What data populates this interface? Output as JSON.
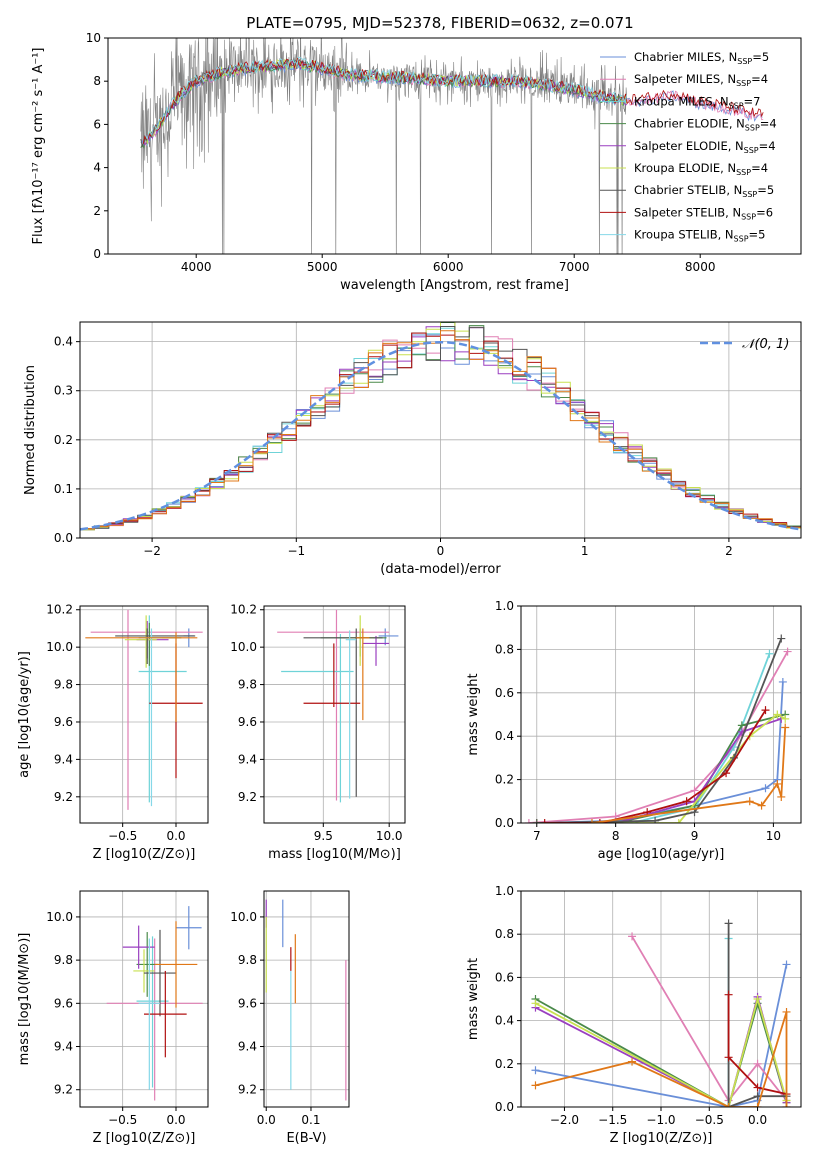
{
  "figure_title": "PLATE=0795, MJD=52378, FIBERID=0632, z=0.071",
  "colors": {
    "Chabrier MILES": "#6a8fd8",
    "Salpeter MILES": "#e07fb4",
    "Kroupa MILES": "#6fd3d8",
    "Chabrier ELODIE": "#4a8a4a",
    "Salpeter ELODIE": "#9a3fc0",
    "Kroupa ELODIE": "#c8e050",
    "Chabrier STELIB": "#555555",
    "Salpeter STELIB": "#b01010",
    "Kroupa STELIB": "#86d8e8",
    "orange": "#e07818",
    "data": "#808080",
    "gaussian": "#6090e0"
  },
  "chart_data": [
    {
      "id": "spectrum",
      "type": "line",
      "title": "",
      "xlabel": "wavelength [Angstrom, rest frame]",
      "ylabel": "Flux [fλ10⁻¹⁷ erg cm⁻² s⁻¹ A⁻¹]",
      "xlim": [
        3300,
        8800
      ],
      "ylim": [
        0,
        10
      ],
      "xticks": [
        4000,
        5000,
        6000,
        7000,
        8000
      ],
      "yticks": [
        0,
        2,
        4,
        6,
        8,
        10
      ],
      "grid": false,
      "legend_position": "top-right",
      "legend": [
        {
          "name": "Chabrier MILES",
          "nssp": "5"
        },
        {
          "name": "Salpeter MILES",
          "nssp": "4"
        },
        {
          "name": "Kroupa MILES",
          "nssp": "7"
        },
        {
          "name": "Chabrier ELODIE",
          "nssp": "4"
        },
        {
          "name": "Salpeter ELODIE",
          "nssp": "4"
        },
        {
          "name": "Kroupa ELODIE",
          "nssp": "4"
        },
        {
          "name": "Chabrier STELIB",
          "nssp": "5"
        },
        {
          "name": "Salpeter STELIB",
          "nssp": "6"
        },
        {
          "name": "Kroupa STELIB",
          "nssp": "5"
        }
      ],
      "continuum": {
        "x": [
          3550,
          3650,
          3800,
          3900,
          4000,
          4200,
          4400,
          4600,
          4800,
          5000,
          5200,
          5500,
          5800,
          6000,
          6300,
          6500,
          6700,
          7000,
          7200,
          7400,
          7600,
          7800,
          8000,
          8200,
          8400,
          8600
        ],
        "y": [
          5.0,
          5.5,
          6.8,
          7.5,
          8.0,
          8.4,
          8.6,
          8.7,
          8.8,
          8.6,
          8.3,
          8.2,
          8.1,
          8.0,
          8.0,
          8.0,
          7.9,
          7.6,
          7.3,
          7.1,
          7.2,
          7.4,
          7.0,
          6.8,
          6.5,
          6.3
        ]
      }
    },
    {
      "id": "residual_hist",
      "type": "bar",
      "title": "",
      "xlabel": "(data-model)/error",
      "ylabel": "Normed distribution",
      "xlim": [
        -2.5,
        2.5
      ],
      "ylim": [
        0,
        0.44
      ],
      "xticks": [
        -2,
        -1,
        0,
        1,
        2
      ],
      "yticks": [
        0.0,
        0.1,
        0.2,
        0.3,
        0.4
      ],
      "grid": true,
      "legend_position": "top-right",
      "legend_label": "𝒩(0, 1)",
      "bin_width": 0.1,
      "bin_start": -2.5,
      "reference": {
        "name": "𝒩(0, 1)",
        "mean": 0,
        "sigma": 1
      }
    },
    {
      "id": "age_vs_Z",
      "type": "scatter",
      "xlabel": "Z [log10(Z/Z⊙)]",
      "ylabel": "age [log10(age/yr)]",
      "xlim": [
        -0.9,
        0.3
      ],
      "ylim": [
        9.06,
        10.22
      ],
      "xticks": [
        -0.5,
        0.0
      ],
      "yticks": [
        9.2,
        9.4,
        9.6,
        9.8,
        10.0,
        10.2
      ],
      "grid": true,
      "points": [
        {
          "series": "Chabrier MILES",
          "x": 0.12,
          "y": 10.06,
          "xerr": [
            0.05,
            0.05
          ],
          "yerr": [
            0.06,
            0.04
          ]
        },
        {
          "series": "Salpeter MILES",
          "x": -0.45,
          "y": 10.08,
          "xerr": [
            0.35,
            0.7
          ],
          "yerr": [
            0.95,
            0.12
          ]
        },
        {
          "series": "Kroupa MILES",
          "x": -0.25,
          "y": 9.87,
          "xerr": [
            0.1,
            0.35
          ],
          "yerr": [
            0.7,
            0.3
          ]
        },
        {
          "series": "Chabrier ELODIE",
          "x": -0.25,
          "y": 10.05,
          "xerr": [
            0.1,
            0.3
          ],
          "yerr": [
            0.15,
            0.08
          ]
        },
        {
          "series": "Salpeter ELODIE",
          "x": -0.27,
          "y": 10.04,
          "xerr": [
            0.1,
            0.2
          ],
          "yerr": [
            0.1,
            0.1
          ]
        },
        {
          "series": "Kroupa ELODIE",
          "x": -0.28,
          "y": 10.04,
          "xerr": [
            0.2,
            0.1
          ],
          "yerr": [
            0.15,
            0.13
          ]
        },
        {
          "series": "Chabrier STELIB",
          "x": -0.27,
          "y": 10.06,
          "xerr": [
            0.3,
            0.45
          ],
          "yerr": [
            0.15,
            0.04
          ]
        },
        {
          "series": "Salpeter STELIB",
          "x": 0.0,
          "y": 9.7,
          "xerr": [
            0.25,
            0.25
          ],
          "yerr": [
            0.4,
            0.32
          ]
        },
        {
          "series": "Kroupa STELIB",
          "x": -0.23,
          "y": 10.05,
          "xerr": [
            0.1,
            0.1
          ],
          "yerr": [
            0.9,
            0.05
          ]
        },
        {
          "series": "orange",
          "x": 0.0,
          "y": 10.05,
          "xerr": [
            0.85,
            0.2
          ],
          "yerr": [
            0.45,
            0.03
          ]
        }
      ]
    },
    {
      "id": "age_vs_mass",
      "type": "scatter",
      "xlabel": "mass [log10(M/M⊙)]",
      "ylabel": "",
      "xlim": [
        9.05,
        10.12
      ],
      "ylim": [
        9.06,
        10.22
      ],
      "xticks": [
        9.5,
        10.0
      ],
      "yticks": [
        9.2,
        9.4,
        9.6,
        9.8,
        10.0,
        10.2
      ],
      "grid": true,
      "points": [
        {
          "series": "Chabrier MILES",
          "x": 9.97,
          "y": 10.06,
          "xerr": [
            0.05,
            0.1
          ],
          "yerr": [
            0.05,
            0.04
          ]
        },
        {
          "series": "Salpeter MILES",
          "x": 9.6,
          "y": 10.08,
          "xerr": [
            0.45,
            0.4
          ],
          "yerr": [
            0.9,
            0.12
          ]
        },
        {
          "series": "Kroupa MILES",
          "x": 9.63,
          "y": 9.87,
          "xerr": [
            0.45,
            0.1
          ],
          "yerr": [
            0.7,
            0.2
          ]
        },
        {
          "series": "Chabrier ELODIE",
          "x": 9.78,
          "y": 10.05,
          "xerr": [
            0.3,
            0.2
          ],
          "yerr": [
            0.1,
            0.05
          ]
        },
        {
          "series": "Salpeter ELODIE",
          "x": 9.9,
          "y": 10.02,
          "xerr": [
            0.1,
            0.1
          ],
          "yerr": [
            0.12,
            0.04
          ]
        },
        {
          "series": "Kroupa ELODIE",
          "x": 9.78,
          "y": 10.05,
          "xerr": [
            0.1,
            0.1
          ],
          "yerr": [
            0.15,
            0.12
          ]
        },
        {
          "series": "Chabrier STELIB",
          "x": 9.75,
          "y": 10.05,
          "xerr": [
            0.4,
            0.2
          ],
          "yerr": [
            0.85,
            0.05
          ]
        },
        {
          "series": "Salpeter STELIB",
          "x": 9.58,
          "y": 9.7,
          "xerr": [
            0.23,
            0.2
          ],
          "yerr": [
            0.02,
            0.32
          ]
        },
        {
          "series": "Kroupa STELIB",
          "x": 9.7,
          "y": 10.04,
          "xerr": [
            0.03,
            0.05
          ],
          "yerr": [
            0.85,
            0.05
          ]
        },
        {
          "series": "orange",
          "x": 9.8,
          "y": 10.05,
          "xerr": [
            0.05,
            0.05
          ],
          "yerr": [
            0.44,
            0.05
          ]
        }
      ]
    },
    {
      "id": "mass_weight_vs_age",
      "type": "line",
      "xlabel": "age [log10(age/yr)]",
      "ylabel": "mass weight",
      "xlim": [
        6.8,
        10.35
      ],
      "ylim": [
        0,
        1.0
      ],
      "xticks": [
        7,
        8,
        9,
        10
      ],
      "yticks": [
        0.0,
        0.2,
        0.4,
        0.6,
        0.8,
        1.0
      ],
      "grid": true,
      "series": [
        {
          "name": "Chabrier MILES",
          "x": [
            7.0,
            8.0,
            9.0,
            9.9,
            10.05,
            10.12
          ],
          "y": [
            0.0,
            0.01,
            0.08,
            0.16,
            0.2,
            0.65
          ]
        },
        {
          "name": "Salpeter MILES",
          "x": [
            6.9,
            8.0,
            9.0,
            9.5,
            10.18
          ],
          "y": [
            0.0,
            0.03,
            0.15,
            0.35,
            0.79
          ]
        },
        {
          "name": "Kroupa MILES",
          "x": [
            7.0,
            8.2,
            9.0,
            9.5,
            9.95
          ],
          "y": [
            0.0,
            0.0,
            0.07,
            0.35,
            0.78
          ]
        },
        {
          "name": "Chabrier ELODIE",
          "x": [
            7.0,
            8.0,
            9.0,
            9.6,
            10.15
          ],
          "y": [
            0.0,
            0.0,
            0.08,
            0.45,
            0.5
          ]
        },
        {
          "name": "Salpeter ELODIE",
          "x": [
            7.0,
            8.0,
            9.0,
            9.6,
            10.1
          ],
          "y": [
            0.0,
            0.0,
            0.1,
            0.42,
            0.48
          ]
        },
        {
          "name": "Kroupa ELODIE",
          "x": [
            7.0,
            8.8,
            9.7,
            10.05,
            10.15
          ],
          "y": [
            0.0,
            0.0,
            0.4,
            0.5,
            0.48
          ]
        },
        {
          "name": "Chabrier STELIB",
          "x": [
            7.0,
            8.5,
            9.0,
            9.5,
            10.1
          ],
          "y": [
            0.0,
            0.01,
            0.05,
            0.3,
            0.85
          ]
        },
        {
          "name": "Salpeter STELIB",
          "x": [
            7.1,
            7.8,
            8.4,
            8.9,
            9.4,
            9.9
          ],
          "y": [
            0.0,
            0.0,
            0.05,
            0.1,
            0.23,
            0.52
          ]
        },
        {
          "name": "orange",
          "x": [
            7.7,
            9.7,
            9.85,
            10.05,
            10.1,
            10.15
          ],
          "y": [
            0.0,
            0.1,
            0.08,
            0.18,
            0.12,
            0.44
          ]
        }
      ]
    },
    {
      "id": "mass_vs_Z",
      "type": "scatter",
      "xlabel": "Z [log10(Z/Z⊙)]",
      "ylabel": "mass [log10(M/M⊙)]",
      "xlim": [
        -0.9,
        0.3
      ],
      "ylim": [
        9.12,
        10.12
      ],
      "xticks": [
        -0.5,
        0.0
      ],
      "yticks": [
        9.2,
        9.4,
        9.6,
        9.8,
        10.0
      ],
      "grid": true,
      "points": [
        {
          "series": "Chabrier MILES",
          "x": 0.12,
          "y": 9.95,
          "xerr": [
            0.12,
            0.12
          ],
          "yerr": [
            0.1,
            0.1
          ]
        },
        {
          "series": "Salpeter MILES",
          "x": -0.2,
          "y": 9.6,
          "xerr": [
            0.45,
            0.45
          ],
          "yerr": [
            0.45,
            0.3
          ]
        },
        {
          "series": "Kroupa MILES",
          "x": -0.22,
          "y": 9.61,
          "xerr": [
            0.15,
            0.15
          ],
          "yerr": [
            0.4,
            0.3
          ]
        },
        {
          "series": "Chabrier ELODIE",
          "x": -0.27,
          "y": 9.78,
          "xerr": [
            0.1,
            0.1
          ],
          "yerr": [
            0.15,
            0.15
          ]
        },
        {
          "series": "Salpeter ELODIE",
          "x": -0.35,
          "y": 9.86,
          "xerr": [
            0.15,
            0.15
          ],
          "yerr": [
            0.1,
            0.1
          ]
        },
        {
          "series": "Kroupa ELODIE",
          "x": -0.3,
          "y": 9.75,
          "xerr": [
            0.1,
            0.1
          ],
          "yerr": [
            0.1,
            0.1
          ]
        },
        {
          "series": "Chabrier STELIB",
          "x": -0.15,
          "y": 9.74,
          "xerr": [
            0.15,
            0.15
          ],
          "yerr": [
            0.2,
            0.2
          ]
        },
        {
          "series": "Salpeter STELIB",
          "x": -0.1,
          "y": 9.55,
          "xerr": [
            0.2,
            0.2
          ],
          "yerr": [
            0.2,
            0.2
          ]
        },
        {
          "series": "Kroupa STELIB",
          "x": -0.25,
          "y": 9.6,
          "xerr": [
            0.1,
            0.1
          ],
          "yerr": [
            0.4,
            0.3
          ]
        },
        {
          "series": "orange",
          "x": 0.0,
          "y": 9.78,
          "xerr": [
            0.2,
            0.2
          ],
          "yerr": [
            0.2,
            0.2
          ]
        }
      ]
    },
    {
      "id": "mass_vs_ebv",
      "type": "scatter",
      "xlabel": "E(B-V)",
      "ylabel": "",
      "xlim": [
        -0.005,
        0.185
      ],
      "ylim": [
        9.12,
        10.12
      ],
      "xticks": [
        0.0,
        0.1
      ],
      "yticks": [
        9.2,
        9.4,
        9.6,
        9.8,
        10.0
      ],
      "grid": true,
      "points": [
        {
          "series": "Salpeter ELODIE",
          "x": 0.0,
          "y": 10.0,
          "xerr": [
            0,
            0
          ],
          "yerr": [
            0.05,
            0.08
          ]
        },
        {
          "series": "Kroupa ELODIE",
          "x": 0.0,
          "y": 9.8,
          "xerr": [
            0,
            0
          ],
          "yerr": [
            0.15,
            0.2
          ]
        },
        {
          "series": "Chabrier MILES",
          "x": 0.037,
          "y": 9.96,
          "xerr": [
            0,
            0
          ],
          "yerr": [
            0.1,
            0.12
          ]
        },
        {
          "series": "Salpeter STELIB",
          "x": 0.055,
          "y": 9.8,
          "xerr": [
            0,
            0
          ],
          "yerr": [
            0.05,
            0.06
          ]
        },
        {
          "series": "Kroupa STELIB",
          "x": 0.055,
          "y": 9.6,
          "xerr": [
            0,
            0
          ],
          "yerr": [
            0.4,
            0.15
          ]
        },
        {
          "series": "orange",
          "x": 0.065,
          "y": 9.8,
          "xerr": [
            0,
            0
          ],
          "yerr": [
            0.2,
            0.12
          ]
        },
        {
          "series": "Salpeter MILES",
          "x": 0.178,
          "y": 9.5,
          "xerr": [
            0,
            0
          ],
          "yerr": [
            0.35,
            0.3
          ]
        }
      ]
    },
    {
      "id": "mass_weight_vs_Z",
      "type": "line",
      "xlabel": "Z [log10(Z/Z⊙)]",
      "ylabel": "mass weight",
      "xlim": [
        -2.45,
        0.45
      ],
      "ylim": [
        0,
        1.0
      ],
      "xticks": [
        -2.0,
        -1.5,
        -1.0,
        -0.5,
        0.0
      ],
      "yticks": [
        0.0,
        0.2,
        0.4,
        0.6,
        0.8,
        1.0
      ],
      "grid": true,
      "series": [
        {
          "name": "Chabrier MILES",
          "x": [
            -2.3,
            -0.3,
            0.0,
            0.3
          ],
          "y": [
            0.17,
            0.0,
            0.03,
            0.66
          ]
        },
        {
          "name": "Salpeter MILES",
          "x": [
            -1.3,
            -0.3,
            0.0,
            0.3
          ],
          "y": [
            0.79,
            0.03,
            0.2,
            0.03
          ]
        },
        {
          "name": "Kroupa MILES",
          "x": [
            -0.3,
            -0.3
          ],
          "y": [
            0.78,
            0.0
          ]
        },
        {
          "name": "Chabrier ELODIE",
          "x": [
            -2.3,
            -0.3,
            0.0,
            0.3
          ],
          "y": [
            0.5,
            0.0,
            0.48,
            0.02
          ]
        },
        {
          "name": "Salpeter ELODIE",
          "x": [
            -2.3,
            -0.3,
            0.0,
            0.3
          ],
          "y": [
            0.46,
            0.0,
            0.51,
            0.02
          ]
        },
        {
          "name": "Kroupa ELODIE",
          "x": [
            -2.3,
            -0.3,
            0.0,
            0.3
          ],
          "y": [
            0.48,
            0.0,
            0.5,
            0.03
          ]
        },
        {
          "name": "Chabrier STELIB",
          "x": [
            -0.3,
            -0.3,
            0.0,
            0.3
          ],
          "y": [
            0.85,
            0.0,
            0.05,
            0.05
          ]
        },
        {
          "name": "Salpeter STELIB",
          "x": [
            -0.3,
            -0.3,
            0.0,
            0.3
          ],
          "y": [
            0.52,
            0.23,
            0.09,
            0.06
          ]
        },
        {
          "name": "orange",
          "x": [
            -2.3,
            -1.3,
            -0.3,
            0.0,
            0.3,
            0.3
          ],
          "y": [
            0.1,
            0.21,
            0.0,
            0.0,
            0.44,
            0.0
          ]
        }
      ]
    }
  ]
}
